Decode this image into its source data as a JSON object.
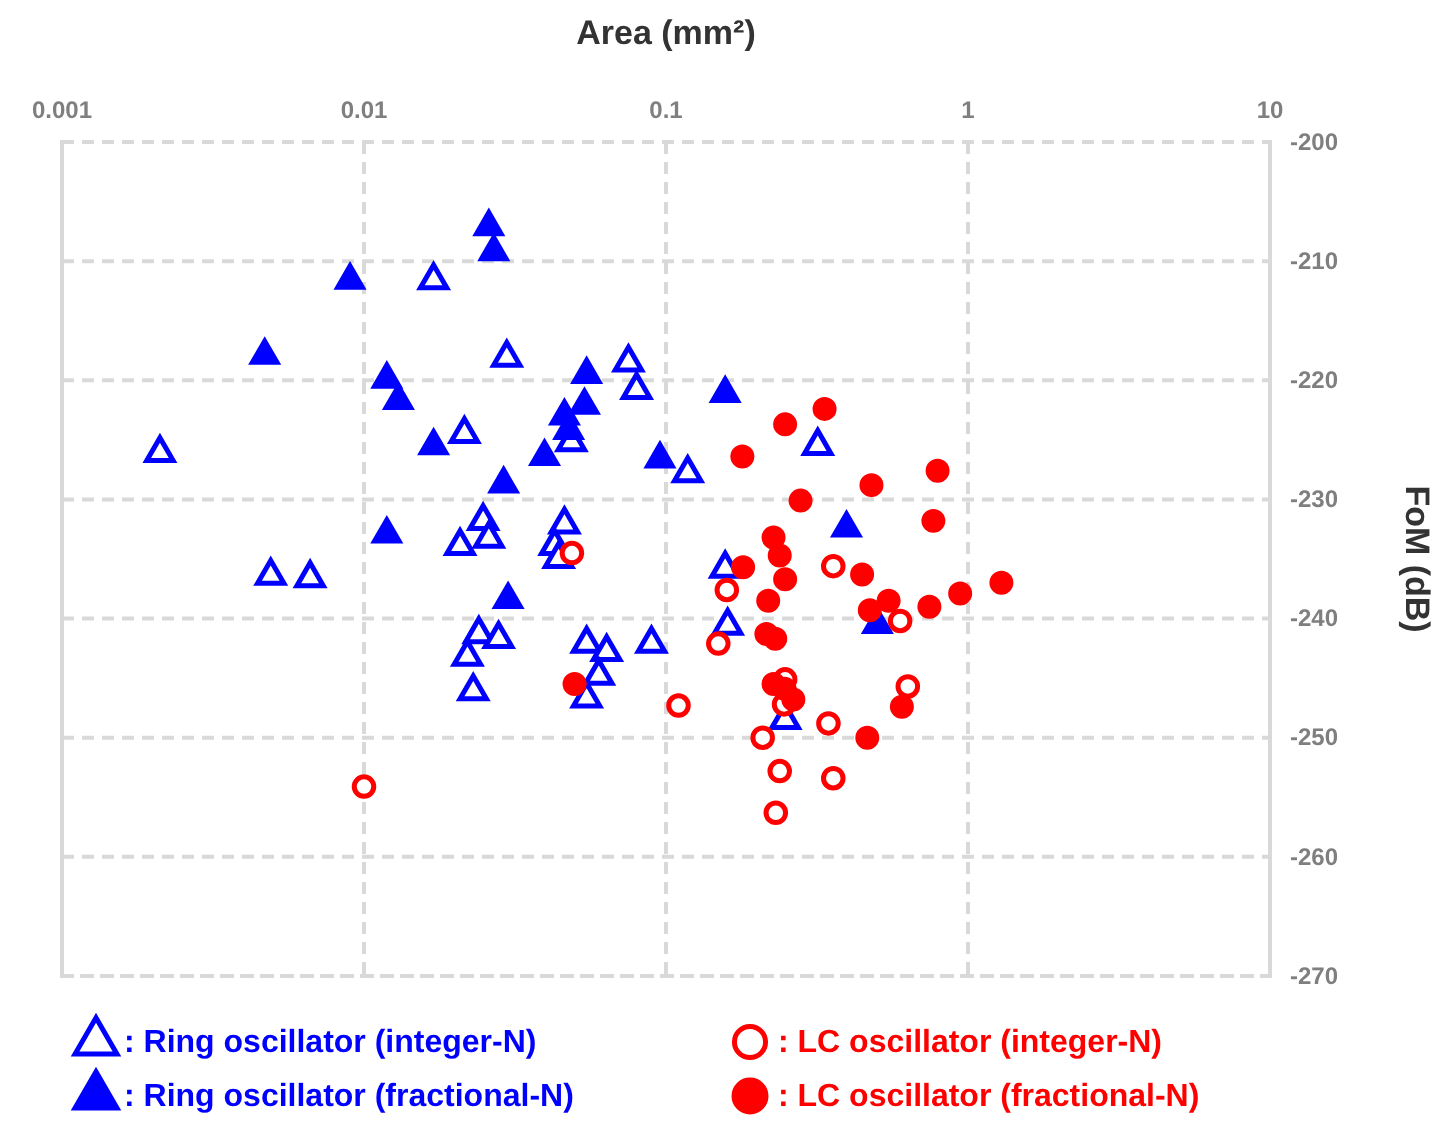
{
  "chart_data": {
    "type": "scatter",
    "xlabel": "Area (mm²)",
    "ylabel": "FoM (dB)",
    "log": "x",
    "grid": true,
    "legend": "bottom",
    "xlim": [
      0.001,
      10
    ],
    "xticks": [
      0.001,
      0.01,
      0.1,
      1,
      10
    ],
    "ylim": [
      -270,
      -200
    ],
    "yticks": [
      -270,
      -260,
      -250,
      -240,
      -230,
      -220,
      -210,
      -200
    ],
    "series": [
      {
        "name": ": Ring oscillator (integer-N)",
        "color": "#0000ff",
        "marker": "triangle",
        "x": [
          0.017,
          0.0297,
          0.00211,
          0.0215,
          0.0248,
          0.0259,
          0.0208,
          0.00491,
          0.00663,
          0.0486,
          0.118,
          0.0461,
          0.0428,
          0.0441,
          0.024,
          0.0279,
          0.022,
          0.023,
          0.0546,
          0.0636,
          0.0895,
          0.0599,
          0.0546,
          0.0751,
          0.0799,
          0.318,
          0.157,
          0.16,
          0.248
        ],
        "values": [
          -211.6,
          -218.1,
          -226.1,
          -224.5,
          -231.8,
          -233.3,
          -233.9,
          -236.4,
          -236.6,
          -225.2,
          -227.8,
          -232.1,
          -233.9,
          -235.0,
          -241.3,
          -241.7,
          -243.2,
          -246.1,
          -242.1,
          -242.8,
          -242.1,
          -244.8,
          -246.7,
          -218.5,
          -220.8,
          -225.5,
          -235.8,
          -240.6,
          -248.5
        ]
      },
      {
        "name": ": Ring oscillator (fractional-N)",
        "color": "#0000ff",
        "marker": "triangle",
        "x": [
          0.0259,
          0.0269,
          0.00899,
          0.00469,
          0.0119,
          0.013,
          0.017,
          0.029,
          0.0119,
          0.03,
          0.0396,
          0.0955,
          0.0546,
          0.0537,
          0.0461,
          0.0476,
          0.157,
          0.396,
          0.501
        ],
        "values": [
          -207.1,
          -209.2,
          -211.6,
          -217.9,
          -219.9,
          -221.7,
          -225.5,
          -228.7,
          -232.9,
          -238.4,
          -226.4,
          -226.6,
          -219.5,
          -222.1,
          -223.0,
          -224.2,
          -221.1,
          -232.4,
          -240.5
        ]
      },
      {
        "name": ": LC oscillator (integer-N)",
        "color": "#ff0000",
        "marker": "circle",
        "x": [
          0.0488,
          0.01,
          0.11,
          0.358,
          0.159,
          0.596,
          0.149,
          0.248,
          0.246,
          0.345,
          0.209,
          0.238,
          0.358,
          0.231,
          0.632
        ],
        "values": [
          -234.5,
          -254.1,
          -247.3,
          -235.6,
          -237.6,
          -240.2,
          -242.1,
          -245.1,
          -247.2,
          -248.8,
          -250.0,
          -252.8,
          -253.4,
          -256.3,
          -245.7
        ]
      },
      {
        "name": ": LC oscillator (fractional-N)",
        "color": "#ff0000",
        "marker": "circle",
        "x": [
          0.335,
          0.248,
          0.179,
          0.793,
          0.479,
          0.279,
          0.768,
          0.227,
          0.238,
          0.248,
          0.18,
          0.218,
          0.446,
          0.546,
          0.473,
          0.745,
          0.942,
          1.29,
          0.215,
          0.23,
          0.0498,
          0.227,
          0.247,
          0.264,
          0.604,
          0.464
        ],
        "values": [
          -222.4,
          -223.7,
          -226.4,
          -227.6,
          -228.8,
          -230.1,
          -231.8,
          -233.2,
          -234.7,
          -236.7,
          -235.7,
          -238.5,
          -236.3,
          -238.5,
          -239.3,
          -239.0,
          -237.9,
          -237.0,
          -241.3,
          -241.7,
          -245.5,
          -245.5,
          -245.9,
          -246.8,
          -247.4,
          -250.0
        ]
      }
    ]
  }
}
